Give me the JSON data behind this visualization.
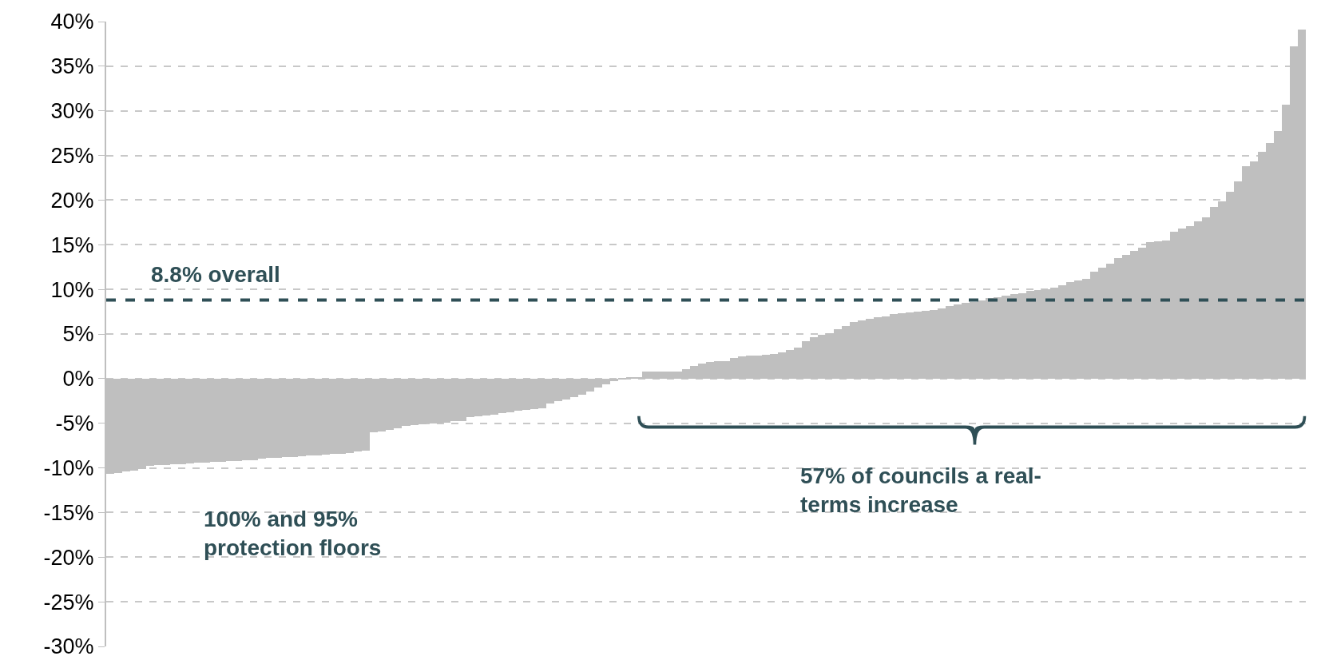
{
  "chart_data": {
    "type": "bar",
    "categories": [
      null,
      null,
      null,
      null,
      null,
      null,
      null,
      null,
      null,
      null,
      null,
      null,
      null,
      null,
      null,
      null,
      null,
      null,
      null,
      null,
      null,
      null,
      null,
      null,
      null,
      null,
      null,
      null,
      null,
      null,
      null,
      null,
      null,
      null,
      null,
      null,
      null,
      null,
      null,
      null,
      null,
      null,
      null,
      null,
      null,
      null,
      null,
      null,
      null,
      null,
      null,
      null,
      null,
      null,
      null,
      null,
      null,
      null,
      null,
      null,
      null,
      null,
      null,
      null,
      null,
      null,
      null,
      null,
      null,
      null,
      null,
      null,
      null,
      null,
      null,
      null,
      null,
      null,
      null,
      null,
      null,
      null,
      null,
      null,
      null,
      null,
      null,
      null,
      null,
      null,
      null,
      null,
      null,
      null,
      null,
      null,
      null,
      null,
      null,
      null,
      null,
      null,
      null,
      null,
      null,
      null,
      null,
      null,
      null,
      null,
      null,
      null,
      null,
      null,
      null,
      null,
      null,
      null,
      null,
      null,
      null,
      null,
      null,
      null,
      null,
      null,
      null,
      null,
      null,
      null,
      null,
      null,
      null,
      null,
      null,
      null,
      null,
      null,
      null,
      null,
      null,
      null,
      null,
      null,
      null,
      null,
      null,
      null,
      null,
      null
    ],
    "values": [
      -10.7,
      -10.6,
      -10.4,
      -10.3,
      -10.1,
      -9.8,
      -9.7,
      -9.7,
      -9.6,
      -9.6,
      -9.5,
      -9.4,
      -9.4,
      -9.3,
      -9.3,
      -9.2,
      -9.2,
      -9.1,
      -9.1,
      -9.0,
      -8.9,
      -8.9,
      -8.8,
      -8.8,
      -8.7,
      -8.6,
      -8.6,
      -8.5,
      -8.4,
      -8.4,
      -8.3,
      -8.2,
      -8.1,
      -6.0,
      -5.9,
      -5.7,
      -5.6,
      -5.3,
      -5.2,
      -5.1,
      -5.0,
      -5.0,
      -4.9,
      -4.8,
      -4.8,
      -4.3,
      -4.2,
      -4.1,
      -4.0,
      -3.9,
      -3.8,
      -3.6,
      -3.5,
      -3.4,
      -3.3,
      -2.8,
      -2.5,
      -2.3,
      -2.1,
      -1.8,
      -1.4,
      -1.0,
      -0.6,
      -0.3,
      -0.1,
      0.1,
      0.2,
      0.8,
      0.8,
      0.8,
      0.8,
      0.8,
      1.1,
      1.4,
      1.7,
      1.9,
      2.0,
      2.0,
      2.3,
      2.5,
      2.6,
      2.6,
      2.7,
      2.8,
      2.9,
      3.2,
      3.5,
      4.2,
      4.6,
      4.9,
      5.1,
      5.5,
      5.9,
      6.3,
      6.5,
      6.7,
      6.9,
      7.0,
      7.2,
      7.3,
      7.4,
      7.5,
      7.6,
      7.7,
      7.9,
      8.1,
      8.3,
      8.5,
      8.6,
      8.8,
      9.0,
      9.1,
      9.3,
      9.5,
      9.6,
      9.8,
      9.9,
      10.0,
      10.2,
      10.5,
      10.8,
      11.0,
      11.2,
      12.0,
      12.4,
      12.9,
      13.5,
      13.9,
      14.3,
      14.7,
      15.3,
      15.4,
      15.5,
      16.5,
      16.8,
      17.1,
      17.6,
      18.1,
      19.2,
      19.9,
      20.9,
      22.1,
      23.8,
      24.3,
      25.4,
      26.4,
      27.7,
      30.7,
      37.2,
      39.1
    ],
    "color": "#bfbfbf",
    "ylim": [
      -30,
      40
    ],
    "yticks": [
      {
        "value": -30,
        "label": "-30%"
      },
      {
        "value": -25,
        "label": "-25%"
      },
      {
        "value": -20,
        "label": "-20%"
      },
      {
        "value": -15,
        "label": "-15%"
      },
      {
        "value": -10,
        "label": "-10%"
      },
      {
        "value": -5,
        "label": "-5%"
      },
      {
        "value": 0,
        "label": "0%"
      },
      {
        "value": 5,
        "label": "5%"
      },
      {
        "value": 10,
        "label": "10%"
      },
      {
        "value": 15,
        "label": "15%"
      },
      {
        "value": 20,
        "label": "20%"
      },
      {
        "value": 25,
        "label": "25%"
      },
      {
        "value": 30,
        "label": "30%"
      },
      {
        "value": 35,
        "label": "35%"
      },
      {
        "value": 40,
        "label": "40%"
      }
    ],
    "grid": "y",
    "tick_labels": "y",
    "ref_lines": [
      {
        "axis": "y",
        "value": 8.8,
        "label": "8.8% overall",
        "color": "#2f4f56",
        "line_style": "dashed"
      }
    ],
    "annotations": [
      "100% and 95%\nprotection floors",
      "57% of councils a real-\nterms increase"
    ]
  }
}
